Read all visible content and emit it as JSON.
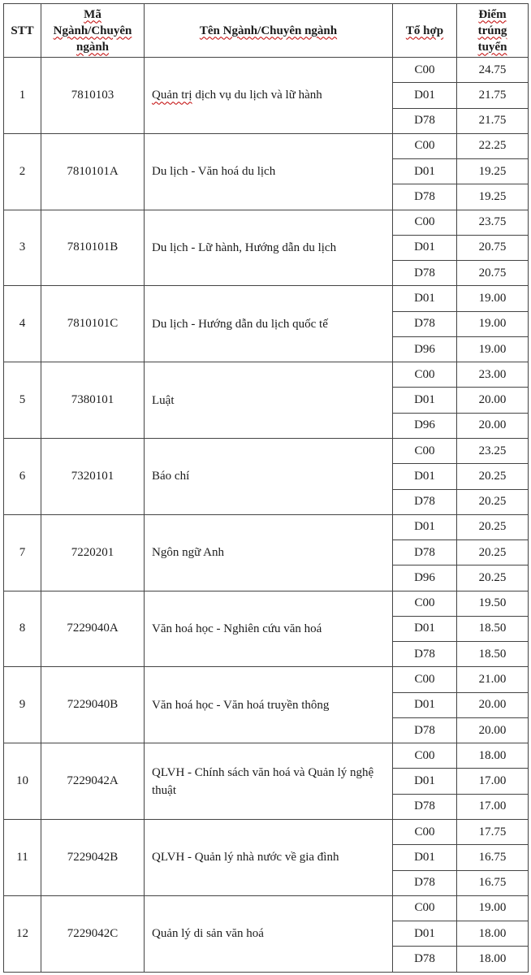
{
  "colors": {
    "background": "#ffffff",
    "text": "#1c1c1c",
    "border": "#444444",
    "squiggle": "#c00000"
  },
  "table": {
    "columns": [
      {
        "id": "stt",
        "label": "STT",
        "label_lines": [
          "STT"
        ],
        "squiggle": false
      },
      {
        "id": "code",
        "label": "Mã Ngành/Chuyên ngành",
        "label_lines": [
          "Mã",
          "Ngành/Chuyên",
          "ngành"
        ],
        "squiggle": true
      },
      {
        "id": "name",
        "label": "Tên Ngành/Chuyên ngành",
        "label_lines": [
          "Tên Ngành/Chuyên ngành"
        ],
        "squiggle": true
      },
      {
        "id": "combo",
        "label": "Tổ hợp",
        "label_lines": [
          "Tổ hợp"
        ],
        "squiggle": true
      },
      {
        "id": "score",
        "label": "Điểm trúng tuyển",
        "label_lines": [
          "Điểm",
          "trúng",
          "tuyển"
        ],
        "squiggle": true
      }
    ],
    "rows": [
      {
        "stt": "1",
        "code": "7810103",
        "name_parts": [
          {
            "text": "Quản trị",
            "misspelled": true
          },
          {
            "text": " dịch vụ du lịch và lữ hành",
            "misspelled": false
          }
        ],
        "entries": [
          {
            "combo": "C00",
            "score": "24.75"
          },
          {
            "combo": "D01",
            "score": "21.75"
          },
          {
            "combo": "D78",
            "score": "21.75"
          }
        ]
      },
      {
        "stt": "2",
        "code": "7810101A",
        "name_parts": [
          {
            "text": "Du lịch - Văn hoá du lịch",
            "misspelled": false
          }
        ],
        "entries": [
          {
            "combo": "C00",
            "score": "22.25"
          },
          {
            "combo": "D01",
            "score": "19.25"
          },
          {
            "combo": "D78",
            "score": "19.25"
          }
        ]
      },
      {
        "stt": "3",
        "code": "7810101B",
        "name_parts": [
          {
            "text": "Du lịch - Lữ hành, Hướng dẫn du lịch",
            "misspelled": false
          }
        ],
        "entries": [
          {
            "combo": "C00",
            "score": "23.75"
          },
          {
            "combo": "D01",
            "score": "20.75"
          },
          {
            "combo": "D78",
            "score": "20.75"
          }
        ]
      },
      {
        "stt": "4",
        "code": "7810101C",
        "name_parts": [
          {
            "text": "Du lịch - Hướng dẫn du lịch quốc tế",
            "misspelled": false
          }
        ],
        "entries": [
          {
            "combo": "D01",
            "score": "19.00"
          },
          {
            "combo": "D78",
            "score": "19.00"
          },
          {
            "combo": "D96",
            "score": "19.00"
          }
        ]
      },
      {
        "stt": "5",
        "code": "7380101",
        "name_parts": [
          {
            "text": "Luật",
            "misspelled": false
          }
        ],
        "entries": [
          {
            "combo": "C00",
            "score": "23.00"
          },
          {
            "combo": "D01",
            "score": "20.00"
          },
          {
            "combo": "D96",
            "score": "20.00"
          }
        ]
      },
      {
        "stt": "6",
        "code": "7320101",
        "name_parts": [
          {
            "text": "Báo chí",
            "misspelled": false
          }
        ],
        "entries": [
          {
            "combo": "C00",
            "score": "23.25"
          },
          {
            "combo": "D01",
            "score": "20.25"
          },
          {
            "combo": "D78",
            "score": "20.25"
          }
        ]
      },
      {
        "stt": "7",
        "code": "7220201",
        "name_parts": [
          {
            "text": "Ngôn ngữ Anh",
            "misspelled": false
          }
        ],
        "entries": [
          {
            "combo": "D01",
            "score": "20.25"
          },
          {
            "combo": "D78",
            "score": "20.25"
          },
          {
            "combo": "D96",
            "score": "20.25"
          }
        ]
      },
      {
        "stt": "8",
        "code": "7229040A",
        "name_parts": [
          {
            "text": "Văn hoá học - Nghiên cứu văn hoá",
            "misspelled": false
          }
        ],
        "entries": [
          {
            "combo": "C00",
            "score": "19.50"
          },
          {
            "combo": "D01",
            "score": "18.50"
          },
          {
            "combo": "D78",
            "score": "18.50"
          }
        ]
      },
      {
        "stt": "9",
        "code": "7229040B",
        "name_parts": [
          {
            "text": "Văn hoá học - Văn hoá truyền thông",
            "misspelled": false
          }
        ],
        "entries": [
          {
            "combo": "C00",
            "score": "21.00"
          },
          {
            "combo": "D01",
            "score": "20.00"
          },
          {
            "combo": "D78",
            "score": "20.00"
          }
        ]
      },
      {
        "stt": "10",
        "code": "7229042A",
        "name_parts": [
          {
            "text": "QLVH - Chính sách văn hoá và Quản lý nghệ thuật",
            "misspelled": false
          }
        ],
        "entries": [
          {
            "combo": "C00",
            "score": "18.00"
          },
          {
            "combo": "D01",
            "score": "17.00"
          },
          {
            "combo": "D78",
            "score": "17.00"
          }
        ]
      },
      {
        "stt": "11",
        "code": "7229042B",
        "name_parts": [
          {
            "text": "QLVH - Quản lý nhà nước về gia đình",
            "misspelled": false
          }
        ],
        "entries": [
          {
            "combo": "C00",
            "score": "17.75"
          },
          {
            "combo": "D01",
            "score": "16.75"
          },
          {
            "combo": "D78",
            "score": "16.75"
          }
        ]
      },
      {
        "stt": "12",
        "code": "7229042C",
        "name_parts": [
          {
            "text": "Quản lý di sản văn hoá",
            "misspelled": false
          }
        ],
        "entries": [
          {
            "combo": "C00",
            "score": "19.00"
          },
          {
            "combo": "D01",
            "score": "18.00"
          },
          {
            "combo": "D78",
            "score": "18.00"
          }
        ]
      }
    ]
  }
}
